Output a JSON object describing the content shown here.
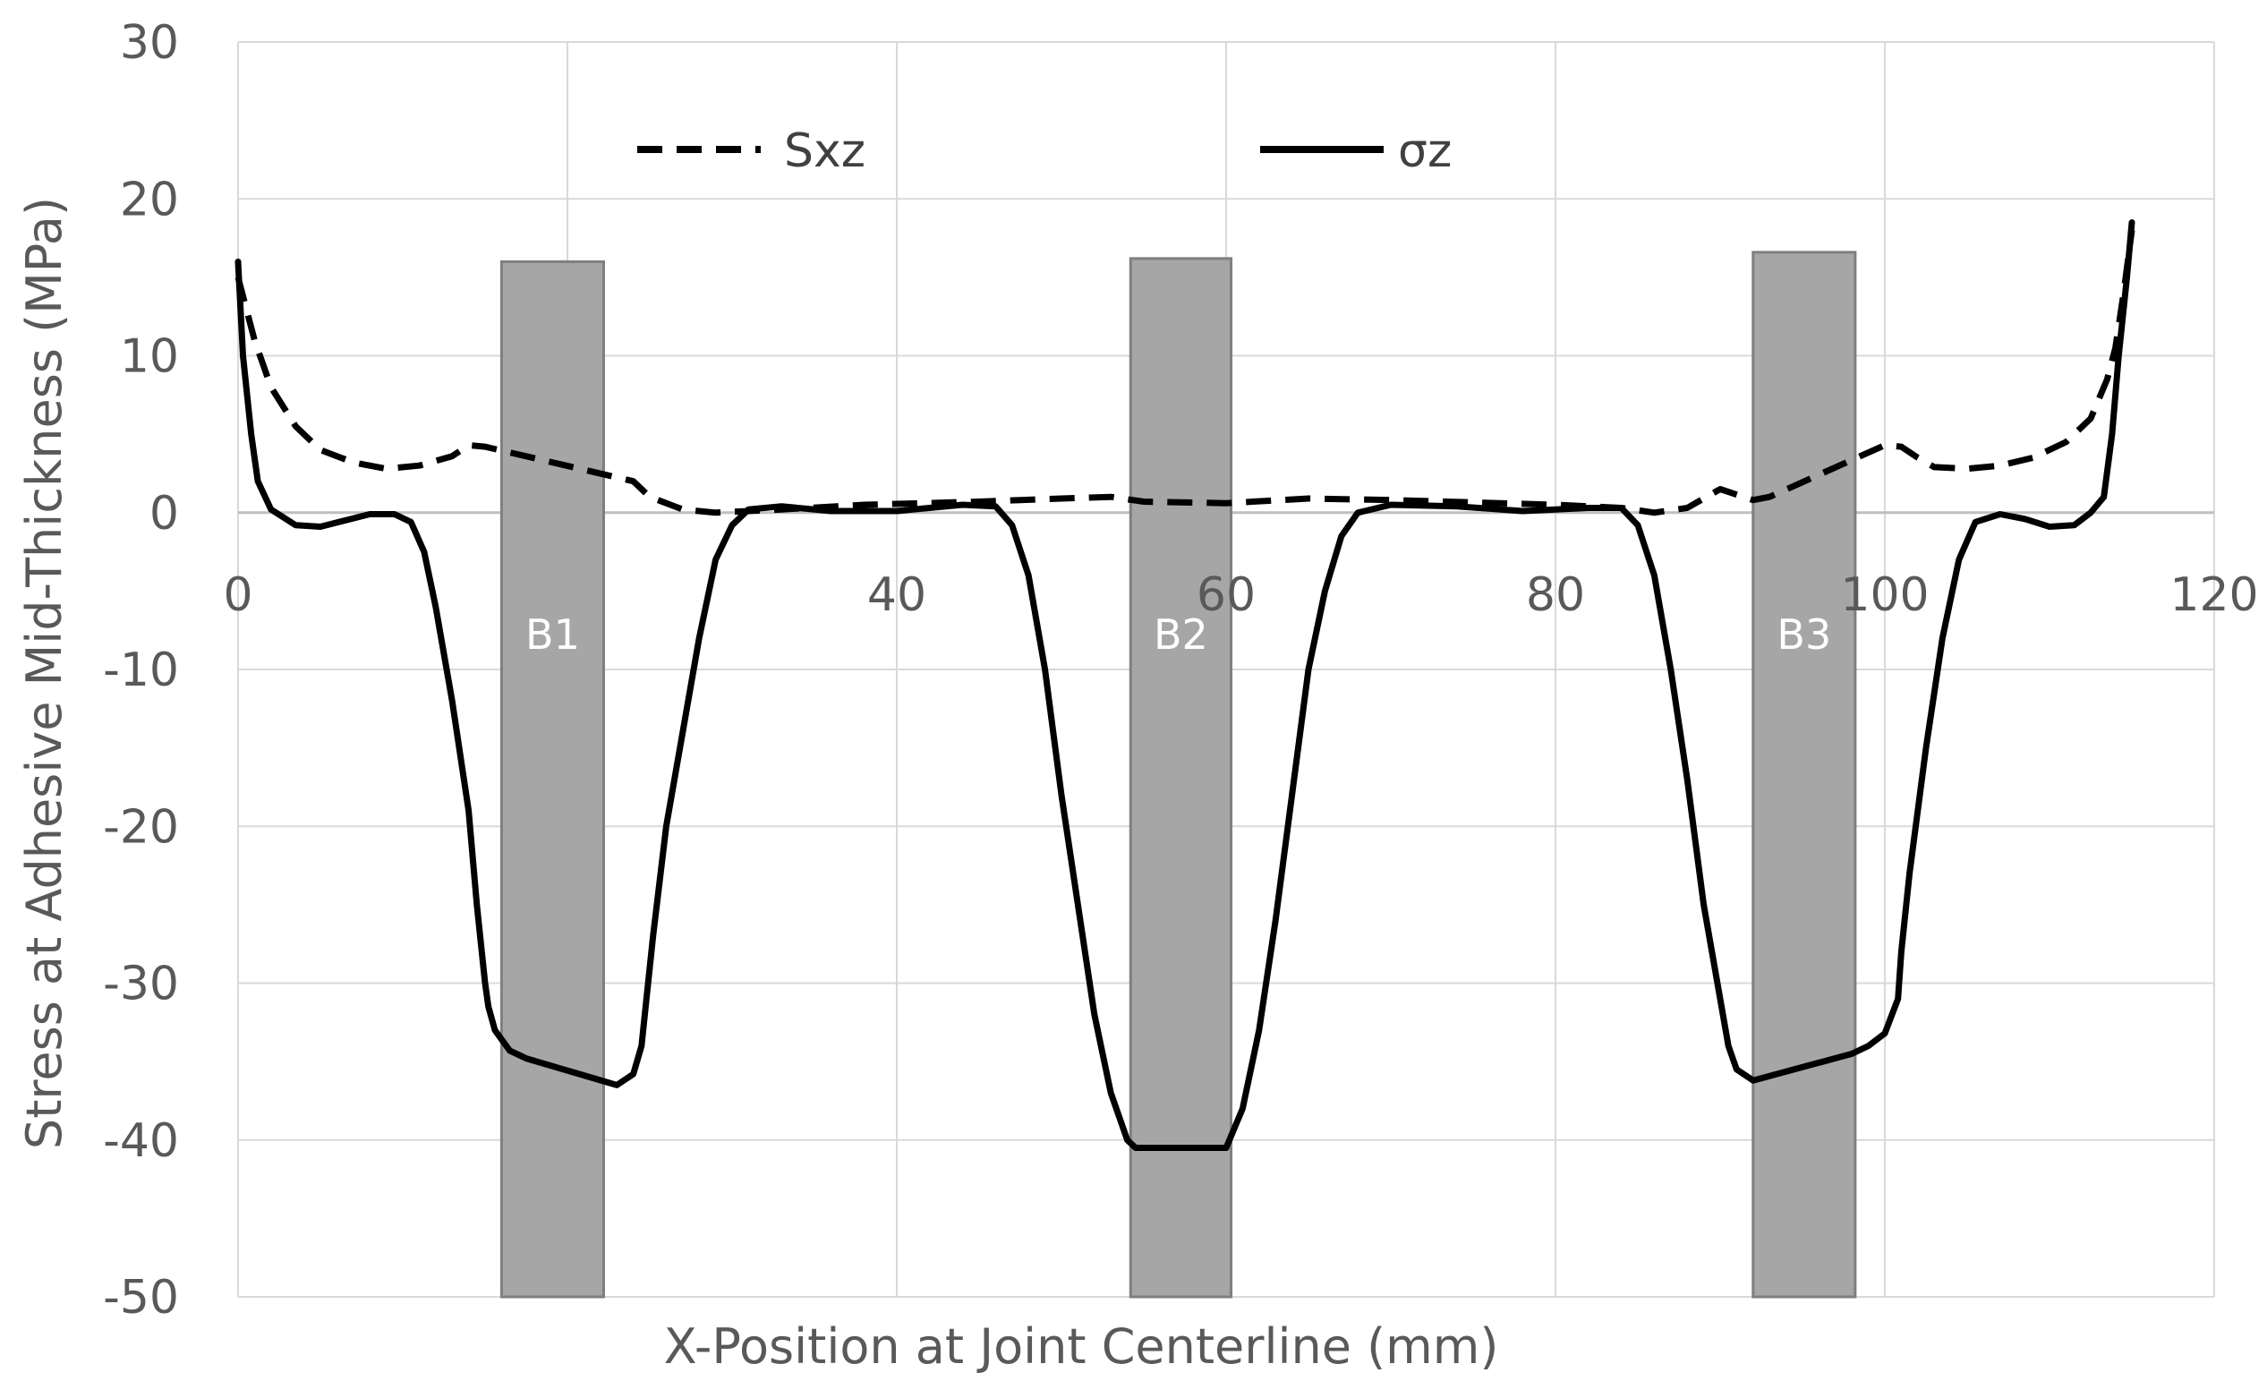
{
  "chart_data": {
    "type": "line",
    "title": "",
    "xlabel": "X-Position at Joint Centerline (mm)",
    "ylabel": "Stress at Adhesive Mid-Thickness (MPa)",
    "xlim": [
      0,
      120
    ],
    "ylim": [
      -50,
      30
    ],
    "xticks": [
      0,
      40,
      60,
      80,
      100,
      120
    ],
    "yticks": [
      30,
      20,
      10,
      0,
      -10,
      -20,
      -30,
      -40,
      -50
    ],
    "grid": true,
    "legend_position": "top",
    "series": [
      {
        "name": "Sxz",
        "style": "dashed",
        "color": "#000000",
        "points": [
          [
            0,
            15
          ],
          [
            0.5,
            13
          ],
          [
            1,
            11
          ],
          [
            2,
            8
          ],
          [
            3.5,
            5.5
          ],
          [
            5,
            4
          ],
          [
            7,
            3.2
          ],
          [
            9,
            2.8
          ],
          [
            11,
            3
          ],
          [
            13,
            3.6
          ],
          [
            14,
            4.3
          ],
          [
            15,
            4.2
          ],
          [
            24,
            2
          ],
          [
            25,
            1
          ],
          [
            27,
            0.2
          ],
          [
            29,
            0
          ],
          [
            33,
            0.2
          ],
          [
            38,
            0.5
          ],
          [
            45,
            0.7
          ],
          [
            50,
            0.9
          ],
          [
            53,
            1
          ],
          [
            55,
            0.7
          ],
          [
            60,
            0.6
          ],
          [
            65,
            0.9
          ],
          [
            70,
            0.8
          ],
          [
            80,
            0.5
          ],
          [
            84,
            0.3
          ],
          [
            86,
            0
          ],
          [
            88,
            0.3
          ],
          [
            90,
            1.5
          ],
          [
            92,
            0.8
          ],
          [
            93,
            1
          ],
          [
            100,
            4.3
          ],
          [
            101,
            4.2
          ],
          [
            102,
            3.5
          ],
          [
            103,
            2.9
          ],
          [
            105,
            2.8
          ],
          [
            107,
            3
          ],
          [
            109,
            3.5
          ],
          [
            111,
            4.5
          ],
          [
            112.5,
            6
          ],
          [
            113.5,
            8.5
          ],
          [
            114,
            10.5
          ],
          [
            114.5,
            14
          ],
          [
            115,
            18
          ]
        ]
      },
      {
        "name": "σz",
        "style": "solid",
        "color": "#000000",
        "points": [
          [
            0,
            16
          ],
          [
            0.3,
            10
          ],
          [
            0.8,
            5
          ],
          [
            1.2,
            2
          ],
          [
            2,
            0.2
          ],
          [
            3.5,
            -0.8
          ],
          [
            5,
            -0.9
          ],
          [
            6.5,
            -0.5
          ],
          [
            8,
            -0.1
          ],
          [
            9.5,
            -0.1
          ],
          [
            10.5,
            -0.6
          ],
          [
            11.3,
            -2.5
          ],
          [
            12,
            -6
          ],
          [
            13,
            -12
          ],
          [
            14,
            -19
          ],
          [
            14.5,
            -25
          ],
          [
            14.8,
            -28
          ],
          [
            15,
            -30
          ],
          [
            15.2,
            -31.5
          ],
          [
            15.6,
            -33
          ],
          [
            16.5,
            -34.3
          ],
          [
            17.5,
            -34.8
          ],
          [
            23,
            -36.5
          ],
          [
            24,
            -35.8
          ],
          [
            24.5,
            -34
          ],
          [
            24.8,
            -31
          ],
          [
            25.2,
            -27
          ],
          [
            26,
            -20
          ],
          [
            27,
            -14
          ],
          [
            28,
            -8
          ],
          [
            29,
            -3
          ],
          [
            30,
            -0.8
          ],
          [
            31,
            0.2
          ],
          [
            33,
            0.4
          ],
          [
            36,
            0.1
          ],
          [
            40,
            0.1
          ],
          [
            44,
            0.5
          ],
          [
            46,
            0.4
          ],
          [
            47,
            -0.8
          ],
          [
            48,
            -4
          ],
          [
            49,
            -10
          ],
          [
            50,
            -18
          ],
          [
            51,
            -25
          ],
          [
            52,
            -32
          ],
          [
            53,
            -37
          ],
          [
            54,
            -40
          ],
          [
            54.5,
            -40.5
          ],
          [
            60,
            -40.5
          ],
          [
            61,
            -38
          ],
          [
            62,
            -33
          ],
          [
            63,
            -26
          ],
          [
            64,
            -18
          ],
          [
            65,
            -10
          ],
          [
            66,
            -5
          ],
          [
            67,
            -1.5
          ],
          [
            68,
            0
          ],
          [
            70,
            0.5
          ],
          [
            74,
            0.4
          ],
          [
            78,
            0.1
          ],
          [
            82,
            0.3
          ],
          [
            84,
            0.3
          ],
          [
            85,
            -0.8
          ],
          [
            86,
            -4
          ],
          [
            87,
            -10
          ],
          [
            88,
            -17
          ],
          [
            89,
            -25
          ],
          [
            90,
            -31
          ],
          [
            90.5,
            -34
          ],
          [
            91,
            -35.5
          ],
          [
            92,
            -36.2
          ],
          [
            98,
            -34.5
          ],
          [
            99,
            -34
          ],
          [
            100,
            -33.2
          ],
          [
            100.8,
            -31
          ],
          [
            101,
            -28
          ],
          [
            101.5,
            -23
          ],
          [
            102.5,
            -15
          ],
          [
            103.5,
            -8
          ],
          [
            104.5,
            -3
          ],
          [
            105.5,
            -0.6
          ],
          [
            107,
            -0.1
          ],
          [
            108.5,
            -0.4
          ],
          [
            110,
            -0.9
          ],
          [
            111.5,
            -0.8
          ],
          [
            112.5,
            0
          ],
          [
            113.3,
            1
          ],
          [
            113.8,
            5
          ],
          [
            114.2,
            10
          ],
          [
            114.7,
            15
          ],
          [
            115,
            18.5
          ]
        ]
      }
    ],
    "bars": [
      {
        "label": "B1",
        "x_start": 16,
        "x_end": 22.2,
        "y_top": 16
      },
      {
        "label": "B2",
        "x_start": 54.2,
        "x_end": 60.3,
        "y_top": 16.2
      },
      {
        "label": "B3",
        "x_start": 92,
        "x_end": 98.2,
        "y_top": 16.6
      }
    ]
  },
  "colors": {
    "grid": "#d9d9d9",
    "bar_fill": "#a6a6a6",
    "bar_stroke": "#7f7f7f",
    "line": "#000000",
    "text": "#595959"
  }
}
